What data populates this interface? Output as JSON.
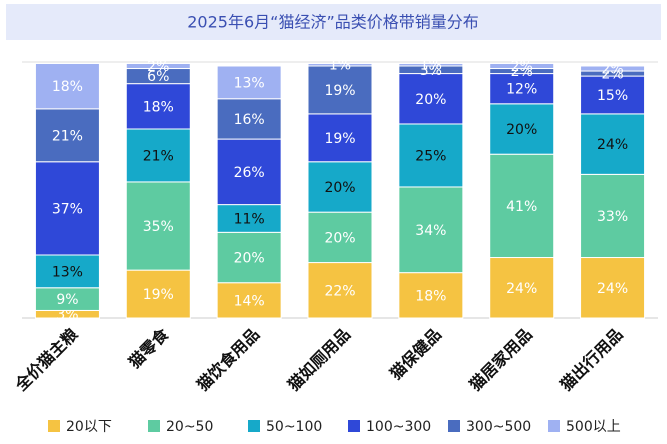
{
  "chart_data": {
    "type": "stacked-bar-100",
    "title": "2025年6月“猫经济”品类价格带销量分布",
    "categories": [
      "全价猫主粮",
      "猫零食",
      "猫饮食用品",
      "猫如厕用品",
      "猫保健品",
      "猫居家用品",
      "猫出行用品"
    ],
    "ylim": [
      0,
      100
    ],
    "legend": "bottom",
    "series": [
      {
        "name": "20以下",
        "color": "#f5c342",
        "values": [
          3,
          19,
          14,
          22,
          18,
          24,
          24
        ],
        "value_labels": [
          "3%",
          "19%",
          "14%",
          "22%",
          "18%",
          "24%",
          "24%"
        ]
      },
      {
        "name": "20~50",
        "color": "#5ecba1",
        "values": [
          9,
          35,
          20,
          20,
          34,
          41,
          33
        ],
        "value_labels": [
          "9%",
          "35%",
          "20%",
          "20%",
          "34%",
          "41%",
          "33%"
        ]
      },
      {
        "name": "50~100",
        "color": "#16a9c9",
        "values": [
          13,
          21,
          11,
          20,
          25,
          20,
          24
        ],
        "value_labels": [
          "13%",
          "21%",
          "11%",
          "20%",
          "25%",
          "20%",
          "24%"
        ]
      },
      {
        "name": "100~300",
        "color": "#2f48d8",
        "values": [
          37,
          18,
          26,
          19,
          20,
          12,
          15
        ],
        "value_labels": [
          "37%",
          "18%",
          "26%",
          "19%",
          "20%",
          "12%",
          "15%"
        ]
      },
      {
        "name": "300~500",
        "color": "#4a6cbf",
        "values": [
          21,
          6,
          16,
          19,
          3,
          2,
          2
        ],
        "value_labels": [
          "21%",
          "6%",
          "16%",
          "19%",
          "3%",
          "2%",
          "2%"
        ]
      },
      {
        "name": "500以上",
        "color": "#9fb1f2",
        "values": [
          18,
          2,
          13,
          1,
          1,
          2,
          2
        ],
        "value_labels": [
          "18%",
          "2%",
          "13%",
          "1%",
          "1%",
          "2%",
          "2%"
        ]
      }
    ]
  }
}
